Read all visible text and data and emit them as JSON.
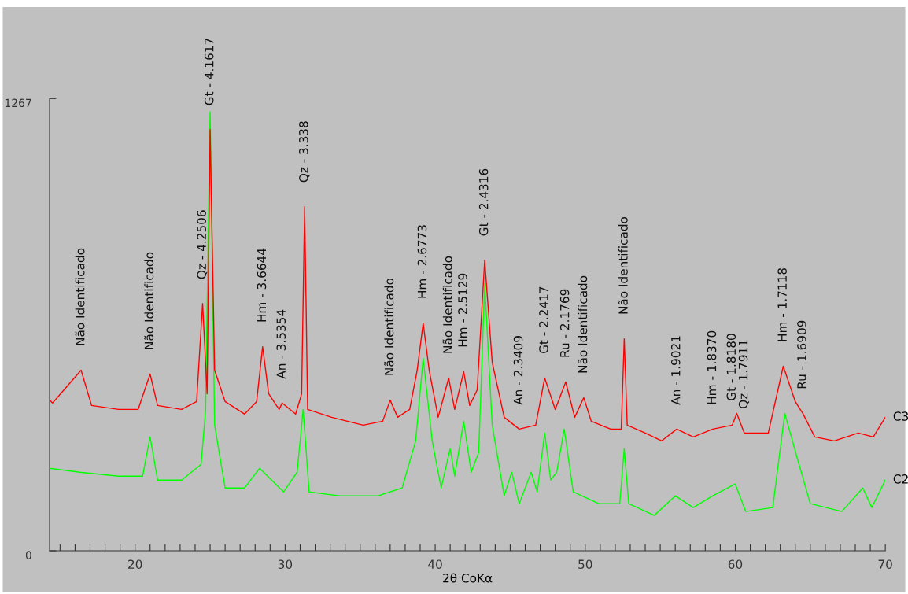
{
  "chart_data": {
    "type": "line",
    "xlabel": "2θ CoKα",
    "xlim": [
      14.3,
      70
    ],
    "ylim": [
      0,
      1267
    ],
    "yticks": [
      0,
      1267
    ],
    "xticks": [
      {
        "value": 15,
        "label": null
      },
      {
        "value": 16,
        "label": null
      },
      {
        "value": 17,
        "label": null
      },
      {
        "value": 18,
        "label": null
      },
      {
        "value": 19,
        "label": null
      },
      20,
      {
        "value": 21,
        "label": null
      },
      {
        "value": 22,
        "label": null
      },
      {
        "value": 23,
        "label": null
      },
      {
        "value": 24,
        "label": null
      },
      {
        "value": 25,
        "label": null
      },
      {
        "value": 26,
        "label": null
      },
      {
        "value": 27,
        "label": null
      },
      {
        "value": 28,
        "label": null
      },
      {
        "value": 29,
        "label": null
      },
      30,
      {
        "value": 31,
        "label": null
      },
      {
        "value": 32,
        "label": null
      },
      {
        "value": 33,
        "label": null
      },
      {
        "value": 34,
        "label": null
      },
      {
        "value": 35,
        "label": null
      },
      {
        "value": 36,
        "label": null
      },
      {
        "value": 37,
        "label": null
      },
      {
        "value": 38,
        "label": null
      },
      {
        "value": 39,
        "label": null
      },
      40,
      {
        "value": 41,
        "label": null
      },
      {
        "value": 42,
        "label": null
      },
      {
        "value": 43,
        "label": null
      },
      {
        "value": 44,
        "label": null
      },
      {
        "value": 45,
        "label": null
      },
      {
        "value": 46,
        "label": null
      },
      {
        "value": 47,
        "label": null
      },
      {
        "value": 48,
        "label": null
      },
      {
        "value": 49,
        "label": null
      },
      50,
      {
        "value": 51,
        "label": null
      },
      {
        "value": 52,
        "label": null
      },
      {
        "value": 53,
        "label": null
      },
      {
        "value": 54,
        "label": null
      },
      {
        "value": 55,
        "label": null
      },
      {
        "value": 56,
        "label": null
      },
      {
        "value": 57,
        "label": null
      },
      {
        "value": 58,
        "label": null
      },
      {
        "value": 59,
        "label": null
      },
      60,
      {
        "value": 61,
        "label": null
      },
      {
        "value": 62,
        "label": null
      },
      {
        "value": 63,
        "label": null
      },
      {
        "value": 64,
        "label": null
      },
      {
        "value": 65,
        "label": null
      },
      {
        "value": 66,
        "label": null
      },
      {
        "value": 67,
        "label": null
      },
      {
        "value": 68,
        "label": null
      },
      {
        "value": 69,
        "label": null
      },
      70
    ],
    "grid": false,
    "legend": false,
    "marker": "none",
    "line_style": "solid",
    "series": [
      {
        "name": "C3",
        "color": "#ff0000",
        "x": [
          14.3,
          14.5,
          16.4,
          17.1,
          18.9,
          20.2,
          21.0,
          21.5,
          23.1,
          24.1,
          24.5,
          24.8,
          25.0,
          25.3,
          26.0,
          27.3,
          28.1,
          28.5,
          28.9,
          29.6,
          29.8,
          30.7,
          31.1,
          31.3,
          31.5,
          33.1,
          35.2,
          36.5,
          37.0,
          37.5,
          38.3,
          38.8,
          39.2,
          39.6,
          40.2,
          40.9,
          41.3,
          41.9,
          42.3,
          42.8,
          43.3,
          43.8,
          44.6,
          45.6,
          46.7,
          47.3,
          48.0,
          48.7,
          49.3,
          49.9,
          50.4,
          51.7,
          52.4,
          52.6,
          52.8,
          54.0,
          55.1,
          56.1,
          57.2,
          58.5,
          59.8,
          60.1,
          60.6,
          62.2,
          63.2,
          64.0,
          64.5,
          65.3,
          66.6,
          68.2,
          69.2,
          70.0
        ],
        "values": [
          422,
          414,
          506,
          407,
          396,
          396,
          495,
          407,
          396,
          418,
          693,
          440,
          1180,
          506,
          418,
          383,
          418,
          572,
          440,
          396,
          414,
          383,
          440,
          964,
          396,
          374,
          352,
          363,
          422,
          374,
          396,
          506,
          638,
          506,
          374,
          484,
          396,
          502,
          407,
          451,
          814,
          528,
          374,
          341,
          352,
          484,
          396,
          473,
          374,
          429,
          363,
          341,
          341,
          594,
          352,
          330,
          308,
          341,
          319,
          341,
          352,
          385,
          330,
          330,
          517,
          418,
          385,
          319,
          308,
          330,
          319,
          374
        ]
      },
      {
        "name": "C2",
        "color": "#00ff00",
        "x": [
          14.3,
          16.3,
          18.9,
          20.5,
          21.0,
          21.5,
          23.1,
          24.4,
          24.7,
          25.0,
          25.3,
          26.0,
          27.3,
          28.3,
          29.9,
          30.8,
          31.2,
          31.6,
          33.6,
          36.2,
          37.8,
          38.7,
          39.2,
          39.8,
          40.4,
          41.0,
          41.3,
          41.9,
          42.4,
          42.9,
          43.3,
          43.8,
          44.6,
          45.1,
          45.6,
          46.4,
          46.8,
          47.3,
          47.7,
          48.1,
          48.6,
          49.2,
          50.9,
          52.3,
          52.6,
          52.9,
          54.6,
          56.0,
          57.2,
          58.5,
          60.0,
          60.7,
          62.5,
          63.3,
          64.1,
          65.0,
          67.1,
          68.5,
          69.1,
          70.0
        ],
        "values": [
          231,
          220,
          209,
          209,
          319,
          198,
          198,
          242,
          396,
          1230,
          352,
          176,
          176,
          231,
          165,
          220,
          396,
          165,
          154,
          154,
          176,
          308,
          539,
          308,
          176,
          286,
          209,
          363,
          220,
          275,
          748,
          352,
          154,
          220,
          132,
          220,
          165,
          330,
          198,
          220,
          341,
          165,
          132,
          132,
          286,
          132,
          99,
          154,
          121,
          154,
          187,
          110,
          121,
          385,
          264,
          132,
          110,
          176,
          121,
          198
        ]
      }
    ],
    "annotations": [
      {
        "text": "Não Identificado",
        "x": 16.4,
        "y": 506
      },
      {
        "text": "Não Identificado",
        "x": 21.0,
        "y": 495
      },
      {
        "text": "Qz - 4.2506",
        "x": 24.5,
        "y": 693
      },
      {
        "text": "Gt - 4.1617",
        "x": 25.0,
        "y": 1180
      },
      {
        "text": "Hm - 3.6644",
        "x": 28.5,
        "y": 572
      },
      {
        "text": "An - 3.5354",
        "x": 29.8,
        "y": 414
      },
      {
        "text": "Qz - 3.338",
        "x": 31.3,
        "y": 964
      },
      {
        "text": "Não Identificado",
        "x": 37.0,
        "y": 422
      },
      {
        "text": "Hm - 2.6773",
        "x": 39.2,
        "y": 638
      },
      {
        "text": "Não Identificado",
        "x": 40.9,
        "y": 484
      },
      {
        "text": "Hm - 2.5129",
        "x": 41.9,
        "y": 502
      },
      {
        "text": "Gt - 2.4316",
        "x": 43.3,
        "y": 814
      },
      {
        "text": "An - 2.3409",
        "x": 45.6,
        "y": 341
      },
      {
        "text": "Gt - 2.2417",
        "x": 47.3,
        "y": 484
      },
      {
        "text": "Ru - 2.1769",
        "x": 48.7,
        "y": 473
      },
      {
        "text": "Não Identificado",
        "x": 49.9,
        "y": 429
      },
      {
        "text": "Não Identificado",
        "x": 52.6,
        "y": 594
      },
      {
        "text": "An - 1.9021",
        "x": 56.1,
        "y": 341
      },
      {
        "text": "Hm - 1.8370",
        "x": 58.5,
        "y": 341
      },
      {
        "text": "Gt - 1.8180",
        "x": 59.8,
        "y": 352
      },
      {
        "text": "Qz - 1.7911",
        "x": 60.6,
        "y": 330
      },
      {
        "text": "Hm - 1.7118",
        "x": 63.2,
        "y": 517
      },
      {
        "text": "Ru - 1.6909",
        "x": 64.5,
        "y": 385
      }
    ]
  }
}
